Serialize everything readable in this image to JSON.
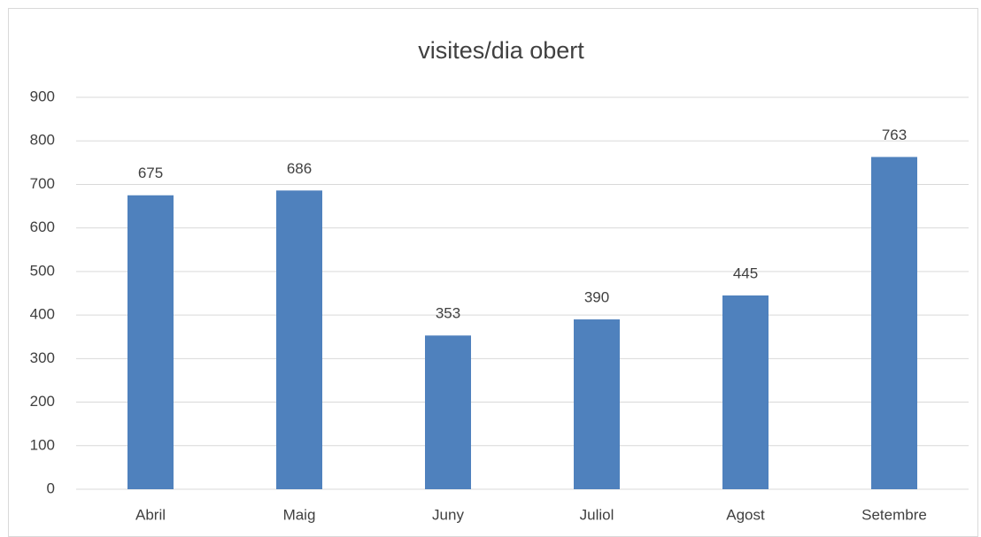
{
  "chart_data": {
    "type": "bar",
    "title": "visites/dia obert",
    "categories": [
      "Abril",
      "Maig",
      "Juny",
      "Juliol",
      "Agost",
      "Setembre"
    ],
    "values": [
      675,
      686,
      353,
      390,
      445,
      763
    ],
    "color": "#4f81bd",
    "ylim": [
      0,
      900
    ],
    "yticks": [
      0,
      100,
      200,
      300,
      400,
      500,
      600,
      700,
      800,
      900
    ],
    "grid": true,
    "data_labels": true
  }
}
